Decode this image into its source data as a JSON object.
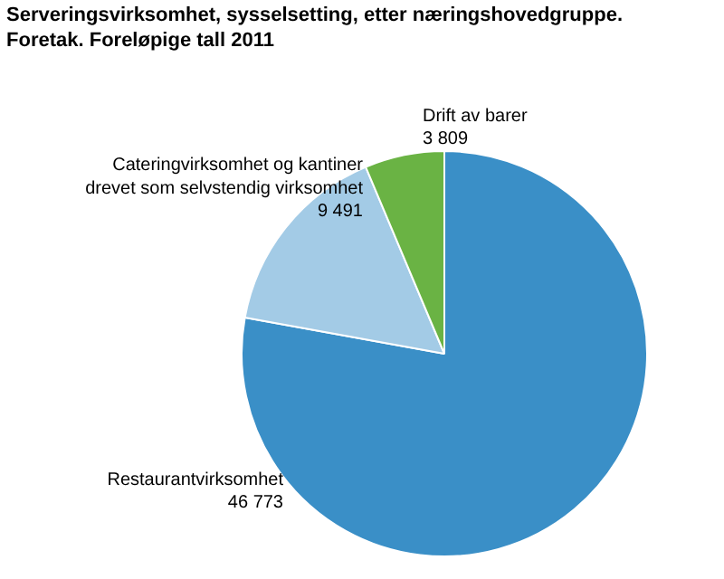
{
  "chart_data": {
    "type": "pie",
    "title": "Serveringsvirksomhet, sysselsetting, etter næringshovedgruppe. Foretak. Foreløpige tall 2011",
    "categories": [
      "Restaurantvirksomhet",
      "Cateringvirksomhet og kantiner drevet som selvstendig virksomhet",
      "Drift av barer"
    ],
    "values": [
      46773,
      9491,
      3809
    ],
    "value_labels": [
      "46 773",
      "9 491",
      "3 809"
    ],
    "colors": [
      "#3a8fc7",
      "#a3cbe6",
      "#6ab344"
    ]
  }
}
